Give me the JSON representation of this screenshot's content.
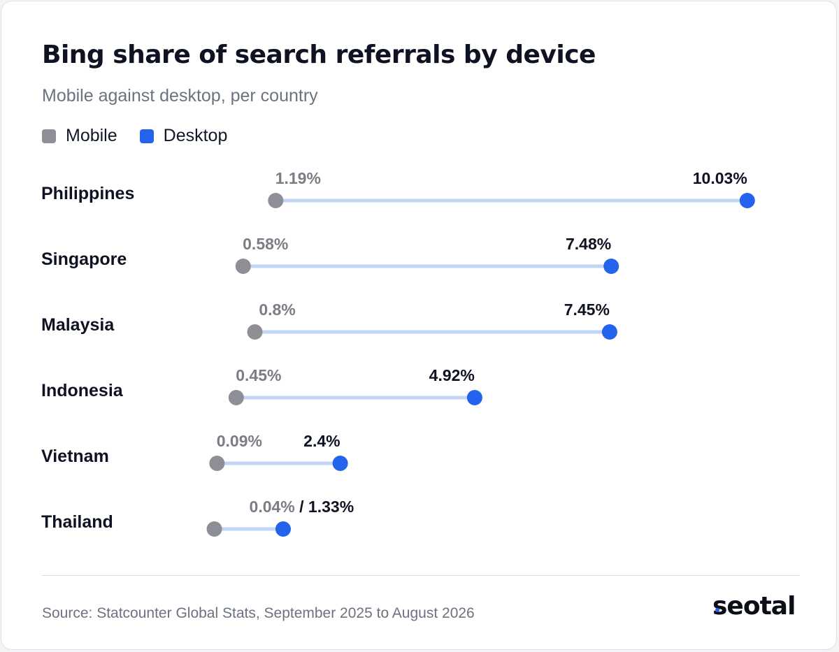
{
  "title": "Bing share of search referrals by device",
  "subtitle": "Mobile against desktop, per country",
  "legend": [
    {
      "label": "Mobile",
      "color": "#8e8f96"
    },
    {
      "label": "Desktop",
      "color": "#2463eb"
    }
  ],
  "colors": {
    "mobile": "#8e8f96",
    "desktop": "#2463eb",
    "connector": "#c2d4f4",
    "mobile_label": "#7b7d85",
    "desktop_label": "#0f1222",
    "country_label": "#0f1222"
  },
  "chart_data": {
    "type": "dumbbell",
    "title": "Bing share of search referrals by device",
    "subtitle": "Mobile against desktop, per country",
    "categories": [
      "Philippines",
      "Singapore",
      "Malaysia",
      "Indonesia",
      "Vietnam",
      "Thailand"
    ],
    "series": [
      {
        "name": "Mobile",
        "values": [
          1.19,
          0.58,
          0.8,
          0.45,
          0.09,
          0.04
        ],
        "labels": [
          "1.19%",
          "0.58%",
          "0.8%",
          "0.45%",
          "0.09%",
          "0.04%"
        ]
      },
      {
        "name": "Desktop",
        "values": [
          10.03,
          7.48,
          7.45,
          4.92,
          2.4,
          1.33
        ],
        "labels": [
          "10.03%",
          "7.48%",
          "7.45%",
          "4.92%",
          "2.4%",
          "1.33%"
        ]
      }
    ],
    "combined_label_separator": " / ",
    "unit": "%",
    "grid": false,
    "legend_position": "top-left"
  },
  "footer": {
    "source": "Source: Statcounter Global Stats, September 2025 to August 2026",
    "logo": "seotal"
  }
}
